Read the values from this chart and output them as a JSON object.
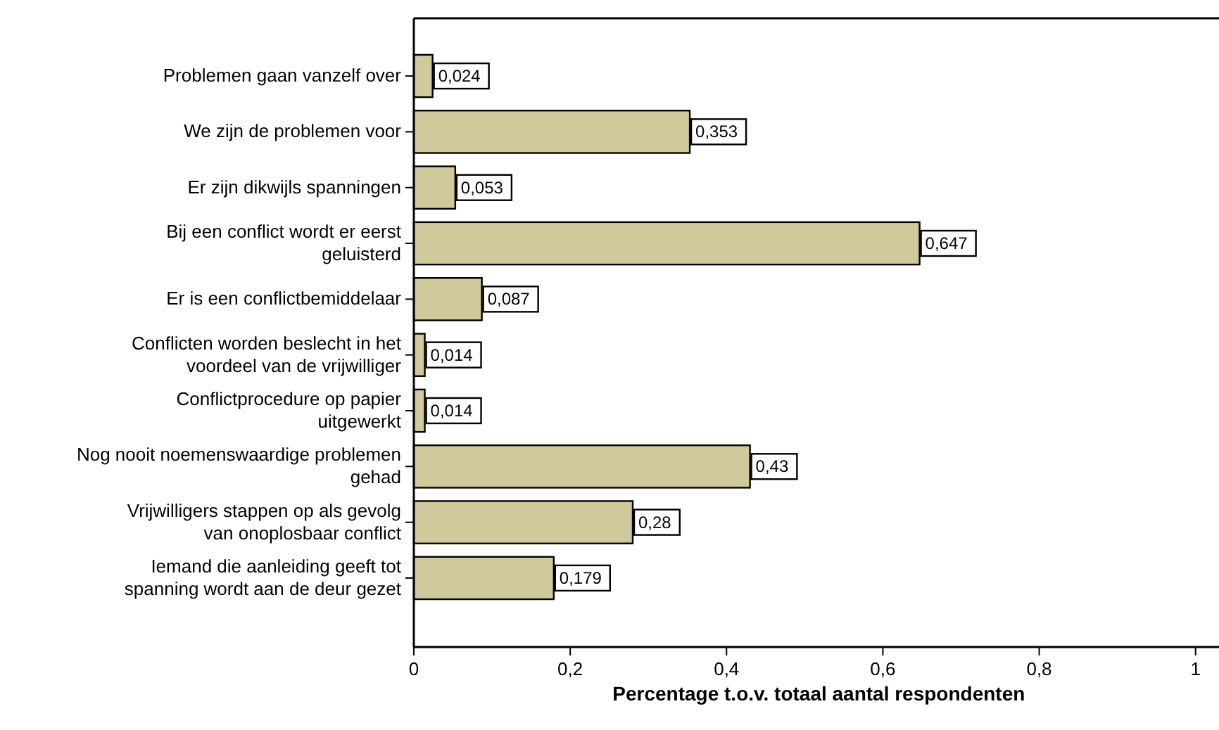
{
  "chart_data": {
    "type": "bar",
    "orientation": "horizontal",
    "xlabel": "Percentage t.o.v. totaal aantal respondenten",
    "categories": [
      "Problemen gaan vanzelf over",
      "We zijn de problemen voor",
      "Er zijn dikwijls spanningen",
      "Bij een conflict wordt er eerst geluisterd",
      "Er is een conflictbemiddelaar",
      "Conflicten worden beslecht in het voordeel van de vrijwilliger",
      "Conflictprocedure op papier uitgewerkt",
      "Nog nooit noemenswaardige problemen gehad",
      "Vrijwilligers stappen op als gevolg van onoplosbaar conflict",
      "Iemand die aanleiding geeft tot spanning wordt aan de deur gezet"
    ],
    "values": [
      0.024,
      0.353,
      0.053,
      0.647,
      0.087,
      0.014,
      0.014,
      0.43,
      0.28,
      0.179
    ],
    "value_labels": [
      "0,024",
      "0,353",
      "0,053",
      "0,647",
      "0,087",
      "0,014",
      "0,014",
      "0,43",
      "0,28",
      "0,179"
    ],
    "color": "#cfc99b",
    "xlim": [
      0,
      1.03
    ],
    "xticks": [
      0,
      {
        "value": 0.2,
        "label": "0,2"
      },
      {
        "value": 0.4,
        "label": "0,4"
      },
      {
        "value": 0.6,
        "label": "0,6"
      },
      {
        "value": 0.8,
        "label": "0,8"
      },
      1
    ],
    "grid": false
  }
}
